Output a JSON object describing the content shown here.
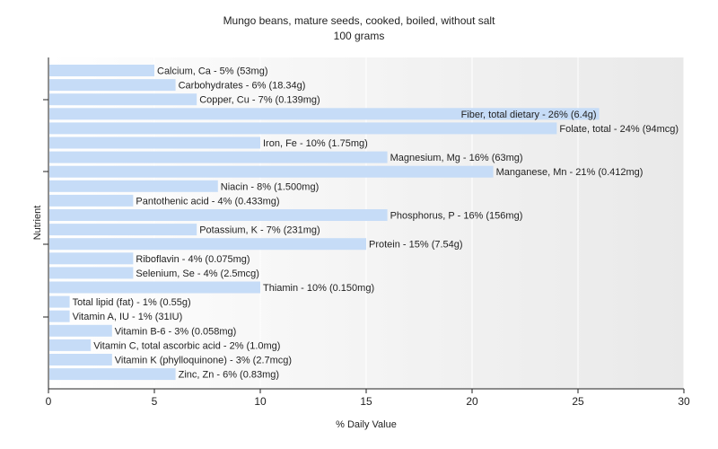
{
  "chart_data": {
    "type": "bar",
    "orientation": "horizontal",
    "title": "Mungo beans, mature seeds, cooked, boiled, without salt",
    "subtitle": "100 grams",
    "xlabel": "% Daily Value",
    "ylabel": "Nutrient",
    "xlim": [
      0,
      30
    ],
    "xticks": [
      0,
      5,
      10,
      15,
      20,
      25,
      30
    ],
    "grid": "vertical",
    "bar_color": "#c6dcf7",
    "categories": [
      "Calcium, Ca",
      "Carbohydrates",
      "Copper, Cu",
      "Fiber, total dietary",
      "Folate, total",
      "Iron, Fe",
      "Magnesium, Mg",
      "Manganese, Mn",
      "Niacin",
      "Pantothenic acid",
      "Phosphorus, P",
      "Potassium, K",
      "Protein",
      "Riboflavin",
      "Selenium, Se",
      "Thiamin",
      "Total lipid (fat)",
      "Vitamin A, IU",
      "Vitamin B-6",
      "Vitamin C, total ascorbic acid",
      "Vitamin K (phylloquinone)",
      "Zinc, Zn"
    ],
    "values": [
      5,
      6,
      7,
      26,
      24,
      10,
      16,
      21,
      8,
      4,
      16,
      7,
      15,
      4,
      4,
      10,
      1,
      1,
      3,
      2,
      3,
      6
    ],
    "labels": [
      "Calcium, Ca - 5% (53mg)",
      "Carbohydrates - 6% (18.34g)",
      "Copper, Cu - 7% (0.139mg)",
      "Fiber, total dietary - 26% (6.4g)",
      "Folate, total - 24% (94mcg)",
      "Iron, Fe - 10% (1.75mg)",
      "Magnesium, Mg - 16% (63mg)",
      "Manganese, Mn - 21% (0.412mg)",
      "Niacin - 8% (1.500mg)",
      "Pantothenic acid - 4% (0.433mg)",
      "Phosphorus, P - 16% (156mg)",
      "Potassium, K - 7% (231mg)",
      "Protein - 15% (7.54g)",
      "Riboflavin - 4% (0.075mg)",
      "Selenium, Se - 4% (2.5mcg)",
      "Thiamin - 10% (0.150mg)",
      "Total lipid (fat) - 1% (0.55g)",
      "Vitamin A, IU - 1% (31IU)",
      "Vitamin B-6 - 3% (0.058mg)",
      "Vitamin C, total ascorbic acid - 2% (1.0mg)",
      "Vitamin K (phylloquinone) - 3% (2.7mcg)",
      "Zinc, Zn - 6% (0.83mg)"
    ]
  }
}
